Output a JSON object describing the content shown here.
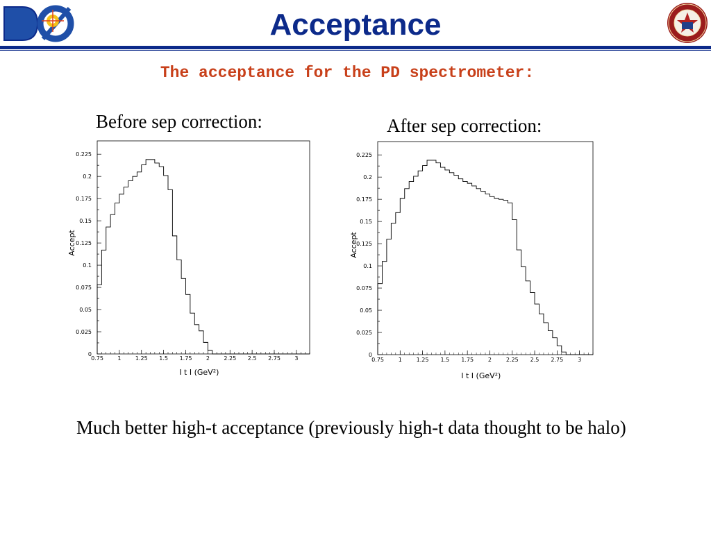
{
  "slide": {
    "title": "Acceptance",
    "subtitle": "The acceptance for the PD spectrometer:",
    "caption_left": "Before sep correction:",
    "caption_right": "After sep correction:",
    "footer": "Much better high-t acceptance (previously high-t data thought to be halo)",
    "colors": {
      "title": "#0c2a8a",
      "subtitle": "#c8401a",
      "rule": "#0c2a8a"
    }
  },
  "logos": {
    "left": {
      "icon": "d0-experiment-logo",
      "text": "DØ"
    },
    "right": {
      "icon": "university-seal-logo"
    }
  },
  "chart_data": [
    {
      "type": "histogram",
      "xlabel": "I t I (GeV²)",
      "ylabel": "Accept",
      "xlim": [
        0.75,
        3.15
      ],
      "ylim": [
        0,
        0.24
      ],
      "xticks": [
        0.75,
        1,
        1.25,
        1.5,
        1.75,
        2,
        2.25,
        2.5,
        2.75,
        3
      ],
      "xtick_labels": [
        "0.75",
        "1",
        "1.25",
        "1.5",
        "1.75",
        "2",
        "2.25",
        "2.5",
        "2.75",
        "3"
      ],
      "yticks": [
        0,
        0.025,
        0.05,
        0.075,
        0.1,
        0.125,
        0.15,
        0.175,
        0.2,
        0.225
      ],
      "ytick_labels": [
        "0",
        "0.025",
        "0.05",
        "0.075",
        "0.1",
        "0.125",
        "0.15",
        "0.175",
        "0.2",
        "0.225"
      ],
      "bin_start": 0.75,
      "bin_width": 0.05,
      "values": [
        0.078,
        0.117,
        0.143,
        0.157,
        0.17,
        0.18,
        0.188,
        0.195,
        0.2,
        0.205,
        0.213,
        0.219,
        0.219,
        0.215,
        0.211,
        0.201,
        0.185,
        0.133,
        0.106,
        0.085,
        0.067,
        0.046,
        0.033,
        0.026,
        0.013,
        0.004,
        0,
        0,
        0,
        0,
        0,
        0,
        0,
        0,
        0,
        0,
        0,
        0,
        0,
        0,
        0,
        0,
        0,
        0,
        0,
        0,
        0,
        0
      ]
    },
    {
      "type": "histogram",
      "xlabel": "I t I (GeV²)",
      "ylabel": "Accept",
      "xlim": [
        0.75,
        3.15
      ],
      "ylim": [
        0,
        0.24
      ],
      "xticks": [
        0.75,
        1,
        1.25,
        1.5,
        1.75,
        2,
        2.25,
        2.5,
        2.75,
        3
      ],
      "xtick_labels": [
        "0.75",
        "1",
        "1.25",
        "1.5",
        "1.75",
        "2",
        "2.25",
        "2.5",
        "2.75",
        "3"
      ],
      "yticks": [
        0,
        0.025,
        0.05,
        0.075,
        0.1,
        0.125,
        0.15,
        0.175,
        0.2,
        0.225
      ],
      "ytick_labels": [
        "0",
        "0.025",
        "0.05",
        "0.075",
        "0.1",
        "0.125",
        "0.15",
        "0.175",
        "0.2",
        "0.225"
      ],
      "bin_start": 0.75,
      "bin_width": 0.05,
      "values": [
        0.08,
        0.105,
        0.13,
        0.148,
        0.16,
        0.176,
        0.187,
        0.195,
        0.201,
        0.207,
        0.213,
        0.219,
        0.219,
        0.216,
        0.211,
        0.208,
        0.205,
        0.202,
        0.198,
        0.195,
        0.193,
        0.19,
        0.187,
        0.184,
        0.181,
        0.178,
        0.176,
        0.175,
        0.174,
        0.171,
        0.152,
        0.118,
        0.099,
        0.083,
        0.07,
        0.057,
        0.046,
        0.036,
        0.027,
        0.019,
        0.01,
        0.003,
        0,
        0,
        0,
        0,
        0,
        0
      ]
    }
  ]
}
